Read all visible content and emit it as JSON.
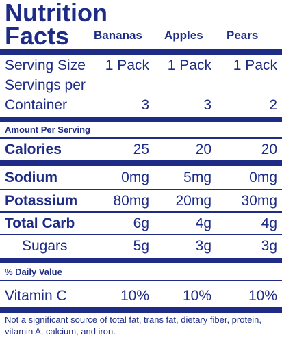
{
  "title": {
    "line1": "Nutrition",
    "line2": "Facts"
  },
  "columns": [
    "Bananas",
    "Apples",
    "Pears"
  ],
  "serving_size": {
    "label": "Serving Size",
    "values": [
      "1 Pack",
      "1 Pack",
      "1 Pack"
    ]
  },
  "servings_per_container": {
    "label_line1": "Servings per",
    "label_line2": "Container",
    "values": [
      "3",
      "3",
      "2"
    ]
  },
  "amount_per_serving": "Amount Per Serving",
  "nutrients": [
    {
      "label": "Calories",
      "values": [
        "25",
        "20",
        "20"
      ]
    },
    {
      "label": "Sodium",
      "values": [
        "0mg",
        "5mg",
        "0mg"
      ]
    },
    {
      "label": "Potassium",
      "values": [
        "80mg",
        "20mg",
        "30mg"
      ]
    },
    {
      "label": "Total Carb",
      "values": [
        "6g",
        "4g",
        "4g"
      ]
    },
    {
      "label": "Sugars",
      "values": [
        "5g",
        "3g",
        "3g"
      ]
    }
  ],
  "daily_value_header": "% Daily Value",
  "vitamin_c": {
    "label": "Vitamin C",
    "values": [
      "10%",
      "10%",
      "10%"
    ]
  },
  "footnote": "Not a significant source of total fat, trans fat, dietary fiber, protein, vitamin A, calcium, and iron.",
  "colors": {
    "ink": "#1e2c86",
    "background": "#ffffff"
  }
}
